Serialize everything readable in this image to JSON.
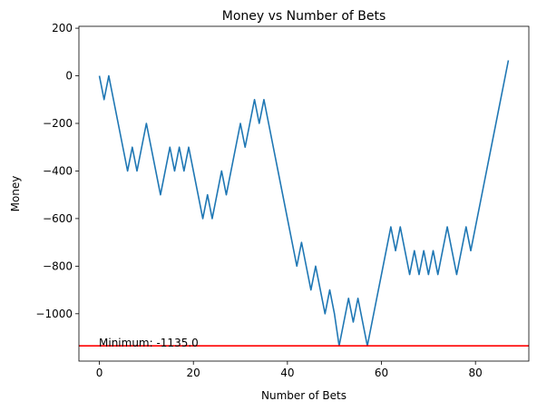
{
  "chart_data": {
    "type": "line",
    "title": "Money vs Number of Bets",
    "xlabel": "Number of Bets",
    "ylabel": "Money",
    "xlim": [
      -4.35,
      91.35
    ],
    "ylim": [
      -1199,
      208
    ],
    "x_ticks": [
      0,
      20,
      40,
      60,
      80
    ],
    "y_ticks": [
      -1000,
      -800,
      -600,
      -400,
      -200,
      0,
      200
    ],
    "y_tick_labels": [
      "−1000",
      "−800",
      "−600",
      "−400",
      "−200",
      "0",
      "200"
    ],
    "grid": false,
    "series": [
      {
        "color": "#1f77b4",
        "x": [
          0,
          1,
          2,
          3,
          4,
          5,
          6,
          7,
          8,
          9,
          10,
          11,
          12,
          13,
          14,
          15,
          16,
          17,
          18,
          19,
          20,
          21,
          22,
          23,
          24,
          25,
          26,
          27,
          28,
          29,
          30,
          31,
          32,
          33,
          34,
          35,
          36,
          37,
          38,
          39,
          40,
          41,
          42,
          43,
          44,
          45,
          46,
          47,
          48,
          49,
          50,
          51,
          52,
          53,
          54,
          55,
          56,
          57,
          58,
          59,
          60,
          61,
          62,
          63,
          64,
          65,
          66,
          67,
          68,
          69,
          70,
          71,
          72,
          73,
          74,
          75,
          76,
          77,
          78,
          79,
          80,
          81,
          82,
          83,
          84,
          85,
          86,
          87
        ],
        "y": [
          0,
          -100,
          0,
          -100,
          -200,
          -300,
          -400,
          -300,
          -400,
          -300,
          -200,
          -300,
          -400,
          -500,
          -400,
          -300,
          -400,
          -300,
          -400,
          -300,
          -400,
          -500,
          -600,
          -500,
          -600,
          -500,
          -400,
          -500,
          -400,
          -300,
          -200,
          -300,
          -200,
          -100,
          -200,
          -100,
          -200,
          -300,
          -400,
          -500,
          -600,
          -700,
          -800,
          -700,
          -800,
          -900,
          -800,
          -900,
          -1000,
          -900,
          -1000,
          -1135,
          -1035,
          -935,
          -1035,
          -935,
          -1035,
          -1135,
          -1035,
          -935,
          -835,
          -735,
          -635,
          -735,
          -635,
          -735,
          -835,
          -735,
          -835,
          -735,
          -835,
          -735,
          -835,
          -735,
          -635,
          -735,
          -835,
          -735,
          -635,
          -735,
          -635,
          -535,
          -435,
          -335,
          -235,
          -135,
          -35,
          65
        ]
      }
    ],
    "reference_line": {
      "y": -1135,
      "color": "#ff0000",
      "label": "Minimum: -1135.0"
    }
  }
}
